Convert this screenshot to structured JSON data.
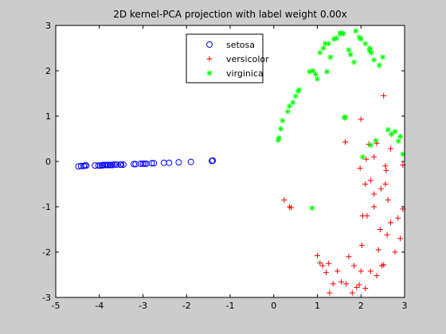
{
  "chart_data": {
    "type": "scatter",
    "title": "2D kernel-PCA projection with label weight 0.00x",
    "xlabel": "",
    "ylabel": "",
    "xlim": [
      -5,
      3
    ],
    "ylim": [
      -3,
      3
    ],
    "xticks": [
      "-5",
      "-4",
      "-3",
      "-2",
      "-1",
      "0",
      "1",
      "2",
      "3"
    ],
    "yticks": [
      "-3",
      "-2",
      "-1",
      "0",
      "1",
      "2",
      "3"
    ],
    "grid": false,
    "legend_position": "top-center",
    "series": [
      {
        "name": "setosa",
        "marker": "circle",
        "color": "#0000ff",
        "points": [
          [
            -4.48,
            -0.11
          ],
          [
            -4.42,
            -0.1
          ],
          [
            -4.36,
            -0.1
          ],
          [
            -4.33,
            -0.09
          ],
          [
            -4.3,
            -0.09
          ],
          [
            -4.1,
            -0.09
          ],
          [
            -4.02,
            -0.09
          ],
          [
            -3.98,
            -0.09
          ],
          [
            -3.94,
            -0.09
          ],
          [
            -3.92,
            -0.08
          ],
          [
            -3.88,
            -0.08
          ],
          [
            -3.84,
            -0.08
          ],
          [
            -3.8,
            -0.08
          ],
          [
            -3.76,
            -0.08
          ],
          [
            -3.74,
            -0.08
          ],
          [
            -3.7,
            -0.08
          ],
          [
            -3.66,
            -0.07
          ],
          [
            -3.6,
            -0.07
          ],
          [
            -3.52,
            -0.07
          ],
          [
            -3.5,
            -0.07
          ],
          [
            -3.45,
            -0.07
          ],
          [
            -3.21,
            -0.06
          ],
          [
            -3.17,
            -0.06
          ],
          [
            -3.05,
            -0.05
          ],
          [
            -3.0,
            -0.05
          ],
          [
            -2.96,
            -0.05
          ],
          [
            -2.92,
            -0.05
          ],
          [
            -2.8,
            -0.04
          ],
          [
            -2.75,
            -0.04
          ],
          [
            -2.52,
            -0.03
          ],
          [
            -2.4,
            -0.03
          ],
          [
            -2.18,
            -0.02
          ],
          [
            -1.9,
            -0.01
          ],
          [
            -1.42,
            0.01
          ],
          [
            -1.4,
            0.02
          ]
        ]
      },
      {
        "name": "versicolor",
        "marker": "plus",
        "color": "#ff0000",
        "points": [
          [
            0.24,
            -0.85
          ],
          [
            0.36,
            -1.0
          ],
          [
            0.4,
            -1.02
          ],
          [
            1.0,
            -2.08
          ],
          [
            1.06,
            -2.24
          ],
          [
            1.12,
            -2.3
          ],
          [
            1.2,
            -2.45
          ],
          [
            1.26,
            -2.25
          ],
          [
            1.28,
            -2.9
          ],
          [
            1.36,
            -2.7
          ],
          [
            1.46,
            -2.42
          ],
          [
            1.55,
            -2.66
          ],
          [
            1.66,
            -2.7
          ],
          [
            1.72,
            -2.1
          ],
          [
            1.8,
            -2.9
          ],
          [
            1.84,
            -2.3
          ],
          [
            1.9,
            -2.78
          ],
          [
            1.96,
            -2.72
          ],
          [
            2.0,
            -2.42
          ],
          [
            2.02,
            -1.85
          ],
          [
            2.1,
            -2.8
          ],
          [
            2.14,
            -1.2
          ],
          [
            2.22,
            -2.42
          ],
          [
            2.3,
            -1.0
          ],
          [
            2.36,
            -2.52
          ],
          [
            2.4,
            -1.95
          ],
          [
            2.44,
            -1.5
          ],
          [
            2.48,
            -2.3
          ],
          [
            2.52,
            -2.28
          ],
          [
            2.6,
            -1.62
          ],
          [
            2.68,
            -1.35
          ],
          [
            2.78,
            -2.0
          ],
          [
            2.85,
            -1.25
          ],
          [
            2.9,
            -1.7
          ],
          [
            2.96,
            -1.05
          ],
          [
            2.62,
            -0.85
          ],
          [
            2.56,
            -0.5
          ],
          [
            2.46,
            -0.6
          ],
          [
            2.3,
            -0.72
          ],
          [
            2.22,
            -0.42
          ],
          [
            2.1,
            -0.5
          ],
          [
            2.04,
            -1.2
          ],
          [
            1.98,
            -0.15
          ],
          [
            2.12,
            0.05
          ],
          [
            2.3,
            0.1
          ],
          [
            2.36,
            0.4
          ],
          [
            2.18,
            0.38
          ],
          [
            2.0,
            0.93
          ],
          [
            2.56,
            -0.1
          ],
          [
            2.58,
            -0.2
          ],
          [
            2.68,
            0.28
          ],
          [
            2.7,
            0.6
          ],
          [
            2.52,
            1.45
          ],
          [
            1.64,
            0.43
          ],
          [
            2.96,
            -0.08
          ]
        ]
      },
      {
        "name": "virginica",
        "marker": "asterisk",
        "color": "#00ff00",
        "points": [
          [
            0.1,
            0.47
          ],
          [
            0.12,
            0.52
          ],
          [
            0.16,
            0.72
          ],
          [
            0.2,
            0.9
          ],
          [
            0.32,
            1.1
          ],
          [
            0.36,
            1.22
          ],
          [
            0.44,
            1.3
          ],
          [
            0.5,
            1.44
          ],
          [
            0.56,
            1.55
          ],
          [
            0.58,
            1.58
          ],
          [
            0.82,
            1.98
          ],
          [
            0.9,
            2.0
          ],
          [
            0.96,
            1.92
          ],
          [
            1.0,
            1.82
          ],
          [
            1.06,
            2.4
          ],
          [
            1.14,
            2.5
          ],
          [
            1.18,
            2.6
          ],
          [
            1.22,
            1.98
          ],
          [
            1.26,
            2.6
          ],
          [
            1.3,
            2.3
          ],
          [
            1.38,
            2.7
          ],
          [
            1.44,
            2.72
          ],
          [
            1.52,
            2.82
          ],
          [
            1.54,
            2.83
          ],
          [
            1.6,
            2.82
          ],
          [
            1.62,
            0.96
          ],
          [
            1.64,
            0.98
          ],
          [
            1.72,
            2.46
          ],
          [
            1.76,
            2.36
          ],
          [
            1.84,
            2.19
          ],
          [
            1.88,
            2.88
          ],
          [
            1.96,
            2.74
          ],
          [
            2.0,
            2.7
          ],
          [
            2.1,
            2.6
          ],
          [
            2.2,
            2.5
          ],
          [
            2.24,
            2.4
          ],
          [
            2.3,
            2.24
          ],
          [
            2.34,
            0.46
          ],
          [
            2.5,
            2.3
          ],
          [
            2.62,
            0.7
          ],
          [
            2.7,
            0.6
          ],
          [
            2.78,
            0.66
          ],
          [
            2.86,
            0.45
          ],
          [
            2.9,
            0.55
          ],
          [
            2.96,
            0.16
          ],
          [
            2.04,
            0.1
          ],
          [
            2.22,
            0.36
          ],
          [
            0.88,
            -1.03
          ],
          [
            2.2,
            2.44
          ],
          [
            2.42,
            2.12
          ]
        ]
      }
    ]
  }
}
